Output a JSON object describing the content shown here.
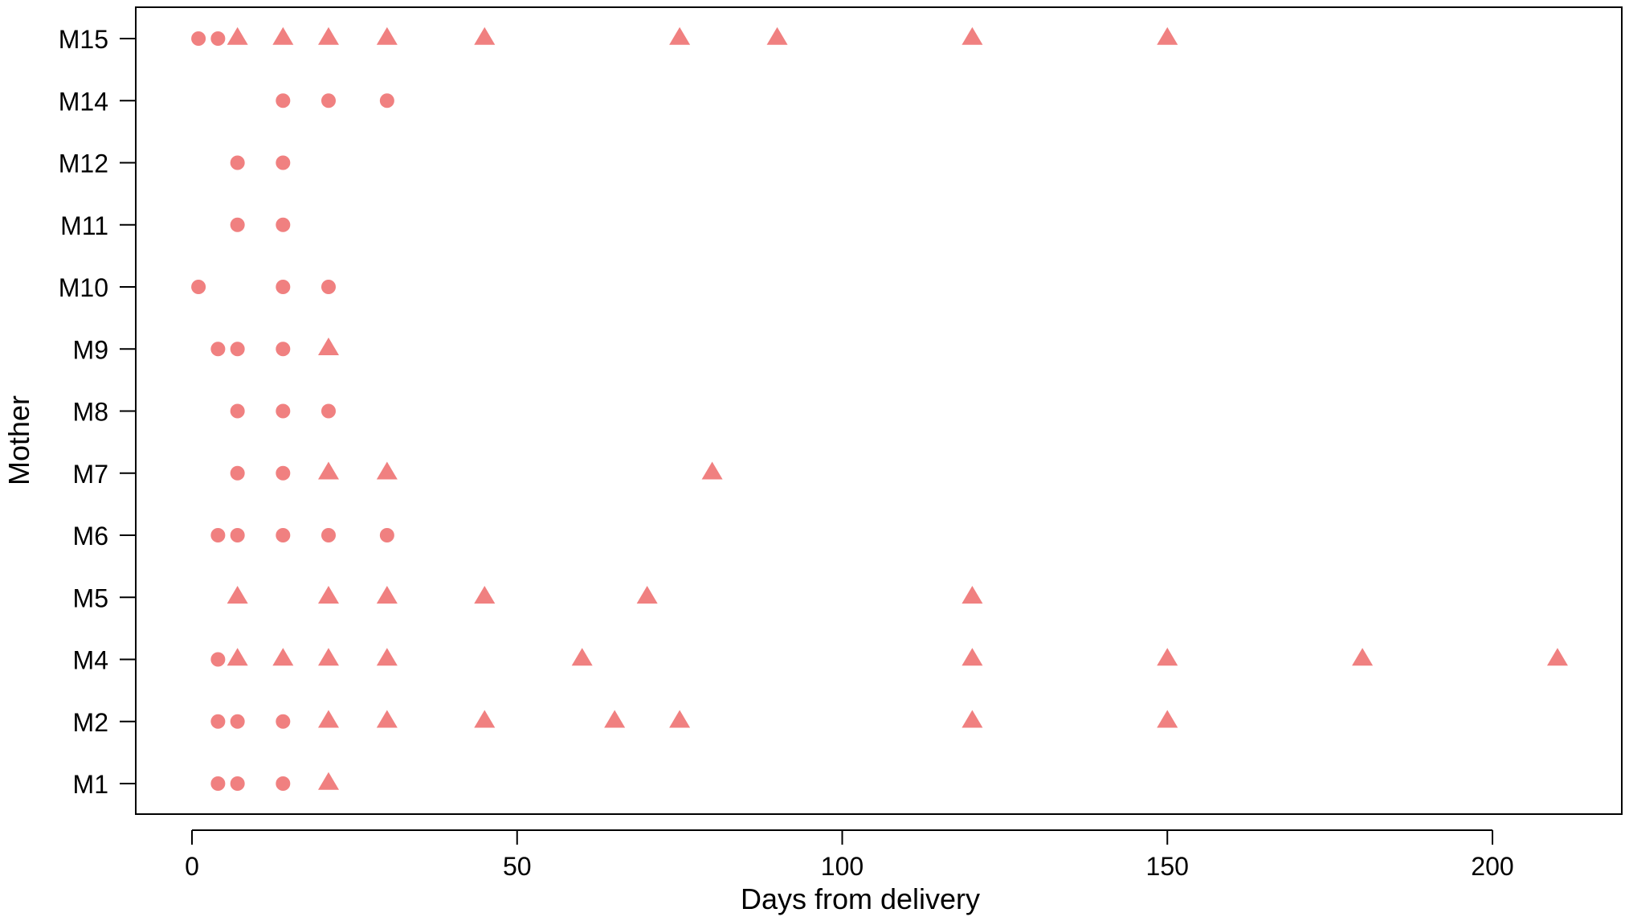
{
  "chart_data": {
    "type": "scatter",
    "title": "",
    "xlabel": "Days from delivery",
    "ylabel": "Mother",
    "xlim": [
      -9,
      220
    ],
    "x_ticks": [
      0,
      50,
      100,
      150,
      200
    ],
    "y_categories": [
      "M1",
      "M2",
      "M4",
      "M5",
      "M6",
      "M7",
      "M8",
      "M9",
      "M10",
      "M11",
      "M12",
      "M14",
      "M15"
    ],
    "grid": false,
    "legend": "none",
    "marker_color": "#f08080",
    "series": [
      {
        "marker": "circle",
        "points": [
          {
            "y": "M1",
            "x": 4
          },
          {
            "y": "M1",
            "x": 7
          },
          {
            "y": "M1",
            "x": 14
          },
          {
            "y": "M2",
            "x": 4
          },
          {
            "y": "M2",
            "x": 7
          },
          {
            "y": "M2",
            "x": 14
          },
          {
            "y": "M4",
            "x": 4
          },
          {
            "y": "M6",
            "x": 4
          },
          {
            "y": "M6",
            "x": 7
          },
          {
            "y": "M6",
            "x": 14
          },
          {
            "y": "M6",
            "x": 21
          },
          {
            "y": "M6",
            "x": 30
          },
          {
            "y": "M7",
            "x": 7
          },
          {
            "y": "M7",
            "x": 14
          },
          {
            "y": "M8",
            "x": 7
          },
          {
            "y": "M8",
            "x": 14
          },
          {
            "y": "M8",
            "x": 21
          },
          {
            "y": "M9",
            "x": 4
          },
          {
            "y": "M9",
            "x": 7
          },
          {
            "y": "M9",
            "x": 14
          },
          {
            "y": "M10",
            "x": 1
          },
          {
            "y": "M10",
            "x": 14
          },
          {
            "y": "M10",
            "x": 21
          },
          {
            "y": "M11",
            "x": 7
          },
          {
            "y": "M11",
            "x": 14
          },
          {
            "y": "M12",
            "x": 7
          },
          {
            "y": "M12",
            "x": 14
          },
          {
            "y": "M14",
            "x": 14
          },
          {
            "y": "M14",
            "x": 21
          },
          {
            "y": "M14",
            "x": 30
          },
          {
            "y": "M15",
            "x": 1
          },
          {
            "y": "M15",
            "x": 4
          }
        ]
      },
      {
        "marker": "triangle",
        "points": [
          {
            "y": "M1",
            "x": 21
          },
          {
            "y": "M2",
            "x": 21
          },
          {
            "y": "M2",
            "x": 30
          },
          {
            "y": "M2",
            "x": 45
          },
          {
            "y": "M2",
            "x": 65
          },
          {
            "y": "M2",
            "x": 75
          },
          {
            "y": "M2",
            "x": 120
          },
          {
            "y": "M2",
            "x": 150
          },
          {
            "y": "M4",
            "x": 7
          },
          {
            "y": "M4",
            "x": 14
          },
          {
            "y": "M4",
            "x": 21
          },
          {
            "y": "M4",
            "x": 30
          },
          {
            "y": "M4",
            "x": 60
          },
          {
            "y": "M4",
            "x": 120
          },
          {
            "y": "M4",
            "x": 150
          },
          {
            "y": "M4",
            "x": 180
          },
          {
            "y": "M4",
            "x": 210
          },
          {
            "y": "M5",
            "x": 7
          },
          {
            "y": "M5",
            "x": 21
          },
          {
            "y": "M5",
            "x": 30
          },
          {
            "y": "M5",
            "x": 45
          },
          {
            "y": "M5",
            "x": 70
          },
          {
            "y": "M5",
            "x": 120
          },
          {
            "y": "M7",
            "x": 21
          },
          {
            "y": "M7",
            "x": 30
          },
          {
            "y": "M7",
            "x": 80
          },
          {
            "y": "M9",
            "x": 21
          },
          {
            "y": "M15",
            "x": 7
          },
          {
            "y": "M15",
            "x": 14
          },
          {
            "y": "M15",
            "x": 21
          },
          {
            "y": "M15",
            "x": 30
          },
          {
            "y": "M15",
            "x": 45
          },
          {
            "y": "M15",
            "x": 75
          },
          {
            "y": "M15",
            "x": 90
          },
          {
            "y": "M15",
            "x": 120
          },
          {
            "y": "M15",
            "x": 150
          }
        ]
      }
    ]
  }
}
